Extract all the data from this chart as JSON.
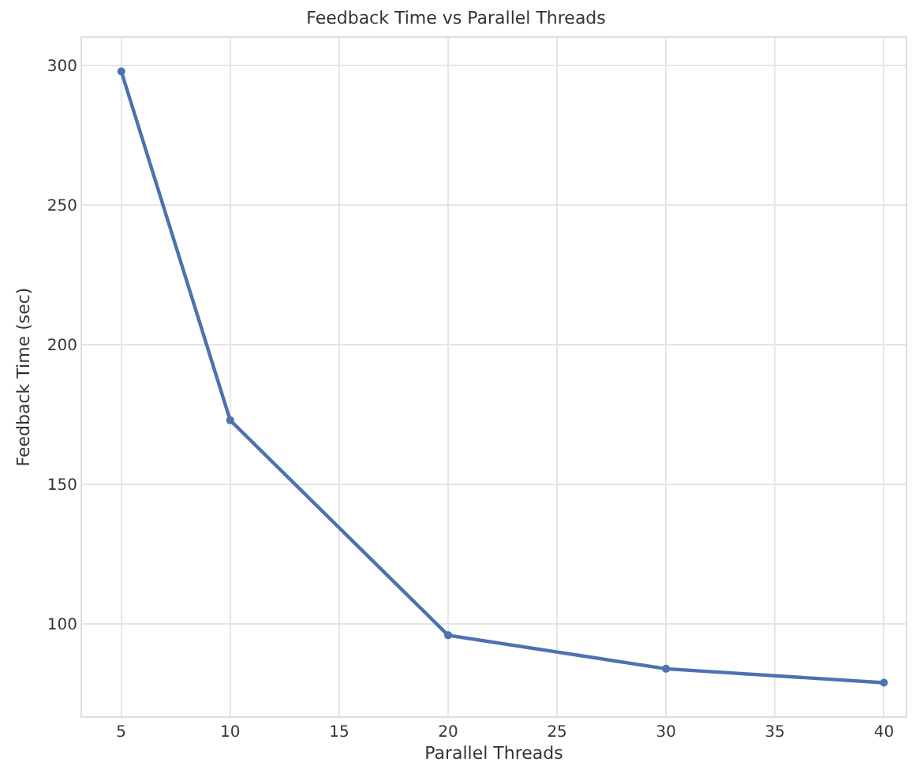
{
  "chart_data": {
    "type": "line",
    "title": "Feedback Time vs Parallel Threads",
    "xlabel": "Parallel Threads",
    "ylabel": "Feedback Time (sec)",
    "x": [
      5,
      10,
      20,
      30,
      40
    ],
    "series": [
      {
        "color": "#4c72b0",
        "values": [
          298,
          173,
          96,
          84,
          79
        ]
      }
    ],
    "xlim": [
      3.2,
      41
    ],
    "ylim": [
      67,
      310
    ],
    "xticks": [
      5,
      10,
      15,
      20,
      25,
      30,
      35,
      40
    ],
    "yticks": [
      100,
      150,
      200,
      250,
      300
    ],
    "grid": true,
    "marker": "circle",
    "line_style": "solid",
    "legend": false
  }
}
